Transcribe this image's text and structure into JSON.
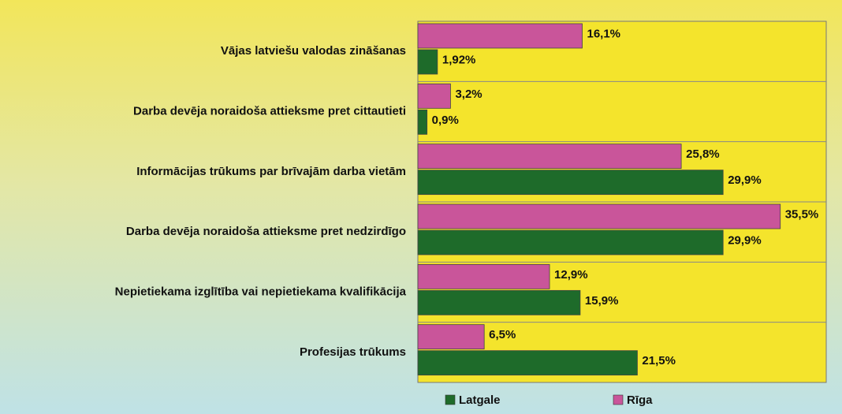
{
  "chart_data": {
    "type": "hbar",
    "categories": [
      "Vājas latviešu valodas zināšanas",
      "Darba devēja noraidoša attieksme pret cittautieti",
      "Informācijas trūkums par brīvajām darba vietām",
      "Darba devēja noraidoša attieksme pret nedzirdīgo",
      "Nepietiekama izglītība vai nepietiekama kvalifikācija",
      "Profesijas trūkums"
    ],
    "series": [
      {
        "name": "Latgale",
        "color": "#1e6b2a",
        "values": [
          1.92,
          0.9,
          29.9,
          29.9,
          15.9,
          21.5
        ],
        "value_labels": [
          "1,92%",
          "0,9%",
          "29,9%",
          "29,9%",
          "15,9%",
          "21,5%"
        ]
      },
      {
        "name": "Rīga",
        "color": "#c9559a",
        "values": [
          16.1,
          3.2,
          25.8,
          35.5,
          12.9,
          6.5
        ],
        "value_labels": [
          "16,1%",
          "3,2%",
          "25,8%",
          "35,5%",
          "12,9%",
          "6,5%"
        ]
      }
    ],
    "xlim": [
      0,
      40
    ]
  }
}
